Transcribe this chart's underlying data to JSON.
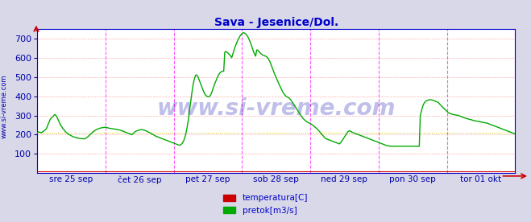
{
  "title": "Sava - Jesenice/Dol.",
  "title_color": "#0000cc",
  "title_fontsize": 10,
  "bg_color": "#d8d8e8",
  "plot_bg_color": "#ffffff",
  "xlabel_color": "#0000aa",
  "ylabel_color": "#0000aa",
  "ylabel_fontsize": 8,
  "xlabel_fontsize": 7.5,
  "ylim": [
    0,
    750
  ],
  "yticks": [
    100,
    200,
    300,
    400,
    500,
    600,
    700
  ],
  "grid_h_color": "#ffb0b0",
  "vline_color": "#ff44ff",
  "watermark_text": "www.si-vreme.com",
  "watermark_color": "#0000aa",
  "watermark_alpha": 0.25,
  "watermark_fontsize": 20,
  "sidebar_text": "www.si-vreme.com",
  "sidebar_color": "#0000aa",
  "sidebar_fontsize": 6,
  "axis_color": "#0000cc",
  "arrow_color": "#cc0000",
  "pretok_color": "#00aa00",
  "temperatura_color": "#cc0000",
  "pretok_linewidth": 1.0,
  "temperatura_linewidth": 0.8,
  "tick_labels": [
    "sre 25 sep",
    "čet 26 sep",
    "pet 27 sep",
    "sob 28 sep",
    "ned 29 sep",
    "pon 30 sep",
    "tor 01 okt"
  ],
  "legend_labels": [
    "temperatura[C]",
    "pretok[m3/s]"
  ],
  "legend_colors": [
    "#cc0000",
    "#00aa00"
  ],
  "pretok_data": [
    210,
    215,
    213,
    212,
    210,
    212,
    218,
    220,
    225,
    230,
    240,
    255,
    265,
    280,
    285,
    290,
    295,
    302,
    305,
    298,
    290,
    278,
    265,
    255,
    245,
    238,
    230,
    225,
    218,
    212,
    208,
    204,
    200,
    198,
    195,
    192,
    190,
    188,
    186,
    185,
    183,
    182,
    181,
    180,
    180,
    179,
    179,
    178,
    180,
    182,
    186,
    190,
    195,
    200,
    205,
    210,
    215,
    218,
    222,
    225,
    228,
    230,
    232,
    234,
    235,
    236,
    237,
    238,
    238,
    238,
    237,
    235,
    234,
    233,
    232,
    231,
    230,
    230,
    229,
    228,
    227,
    226,
    225,
    224,
    222,
    220,
    218,
    216,
    214,
    212,
    210,
    208,
    206,
    204,
    202,
    200,
    205,
    210,
    215,
    218,
    220,
    222,
    224,
    225,
    226,
    226,
    225,
    224,
    222,
    220,
    218,
    215,
    212,
    210,
    207,
    204,
    201,
    198,
    195,
    192,
    190,
    188,
    186,
    184,
    182,
    180,
    178,
    176,
    174,
    172,
    170,
    168,
    166,
    164,
    162,
    160,
    158,
    156,
    154,
    152,
    150,
    148,
    146,
    145,
    148,
    153,
    160,
    170,
    185,
    205,
    230,
    260,
    295,
    335,
    375,
    415,
    450,
    478,
    498,
    510,
    510,
    502,
    490,
    476,
    462,
    448,
    435,
    422,
    412,
    405,
    400,
    398,
    397,
    400,
    408,
    420,
    435,
    450,
    465,
    478,
    490,
    502,
    512,
    520,
    525,
    528,
    530,
    530,
    628,
    632,
    630,
    625,
    620,
    615,
    608,
    600,
    618,
    635,
    650,
    665,
    678,
    690,
    700,
    710,
    718,
    724,
    728,
    730,
    728,
    724,
    718,
    710,
    700,
    688,
    675,
    660,
    645,
    630,
    618,
    608,
    640,
    640,
    635,
    628,
    622,
    618,
    614,
    612,
    610,
    608,
    605,
    600,
    592,
    582,
    570,
    556,
    542,
    528,
    515,
    503,
    492,
    480,
    468,
    456,
    445,
    434,
    424,
    415,
    408,
    402,
    398,
    395,
    392,
    388,
    382,
    375,
    367,
    359,
    351,
    343,
    335,
    327,
    318,
    310,
    302,
    295,
    288,
    282,
    277,
    272,
    268,
    265,
    262,
    260,
    257,
    254,
    250,
    246,
    242,
    237,
    233,
    228,
    222,
    216,
    210,
    204,
    198,
    192,
    186,
    180,
    178,
    176,
    174,
    172,
    170,
    168,
    166,
    164,
    162,
    160,
    158,
    156,
    154,
    152,
    158,
    165,
    172,
    180,
    188,
    196,
    204,
    212,
    218,
    220,
    218,
    215,
    212,
    210,
    208,
    206,
    204,
    202,
    200,
    198,
    196,
    194,
    192,
    190,
    188,
    186,
    184,
    182,
    180,
    178,
    176,
    174,
    172,
    170,
    168,
    166,
    164,
    162,
    160,
    158,
    156,
    154,
    152,
    150,
    148,
    146,
    144,
    143,
    142,
    141,
    140,
    140,
    140,
    140,
    140,
    140,
    140,
    140,
    140,
    140,
    140,
    140,
    140,
    140,
    140,
    140,
    140,
    140,
    140,
    140,
    140,
    140,
    140,
    140,
    140,
    140,
    140,
    140,
    140,
    140,
    300,
    320,
    340,
    355,
    365,
    372,
    376,
    378,
    380,
    381,
    382,
    381,
    380,
    378,
    376,
    374,
    372,
    370,
    368,
    362,
    356,
    350,
    345,
    340,
    335,
    330,
    325,
    320,
    315,
    312,
    310,
    308,
    306,
    305,
    304,
    303,
    302,
    301,
    300,
    298,
    296,
    294,
    292,
    290,
    288,
    286,
    285,
    283,
    282,
    280,
    279,
    278,
    276,
    274,
    273,
    272,
    271,
    270,
    269,
    268,
    267,
    266,
    265,
    264,
    263,
    262,
    261,
    260,
    258,
    256,
    254,
    252,
    250,
    248,
    246,
    244,
    242,
    240,
    238,
    236,
    234,
    232,
    230,
    228,
    226,
    224,
    222,
    220,
    218,
    216,
    214,
    212,
    210,
    208,
    206,
    204
  ],
  "temperatura_data_flat": 10,
  "hline_ref_value": 210,
  "hline_ref_color": "#cccc00"
}
